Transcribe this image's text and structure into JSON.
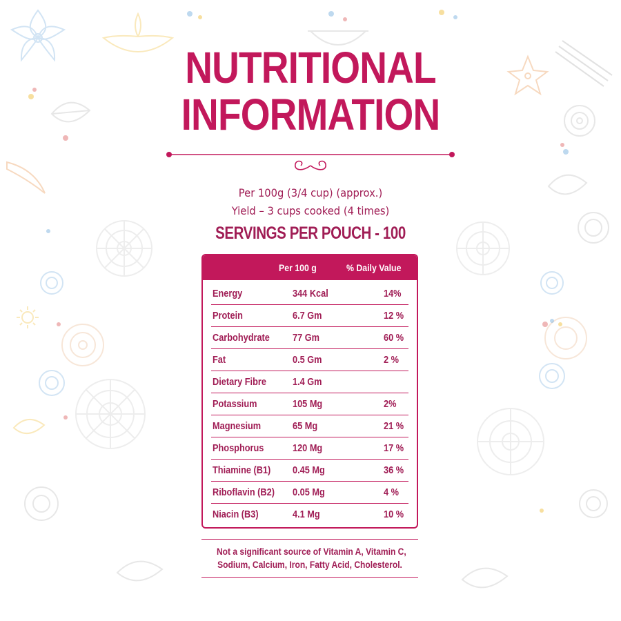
{
  "header": {
    "title_line1": "NUTRITIONAL",
    "title_line2": "INFORMATION",
    "serving_line1": "Per 100g (3/4 cup) (approx.)",
    "serving_line2": "Yield – 3 cups cooked (4 times)",
    "servings": "SERVINGS PER POUCH - 100"
  },
  "table": {
    "headers": {
      "nutrient": "",
      "per": "Per 100 g",
      "dv": "% Daily Value"
    },
    "rows": [
      {
        "name": "Energy",
        "amount": "344 Kcal",
        "dv": "14%"
      },
      {
        "name": "Protein",
        "amount": "6.7 Gm",
        "dv": "12 %"
      },
      {
        "name": "Carbohydrate",
        "amount": "77 Gm",
        "dv": "60 %"
      },
      {
        "name": "Fat",
        "amount": "0.5 Gm",
        "dv": "2 %"
      },
      {
        "name": "Dietary Fibre",
        "amount": "1.4 Gm",
        "dv": ""
      },
      {
        "name": "Potassium",
        "amount": "105 Mg",
        "dv": "2%"
      },
      {
        "name": "Magnesium",
        "amount": "65 Mg",
        "dv": "21 %"
      },
      {
        "name": "Phosphorus",
        "amount": "120 Mg",
        "dv": "17 %"
      },
      {
        "name": "Thiamine (B1)",
        "amount": "0.45 Mg",
        "dv": "36 %"
      },
      {
        "name": "Riboflavin (B2)",
        "amount": "0.05 Mg",
        "dv": "4 %"
      },
      {
        "name": "Niacin (B3)",
        "amount": "4.1 Mg",
        "dv": "10 %"
      }
    ]
  },
  "footnote": {
    "line1": "Not a significant source of Vitamin A, Vitamin C,",
    "line2": "Sodium, Calcium, Iron, Fatty Acid, Cholesterol."
  },
  "colors": {
    "accent": "#c2185b",
    "text": "#a01d55",
    "header_text": "#ffffff",
    "background": "#ffffff"
  }
}
